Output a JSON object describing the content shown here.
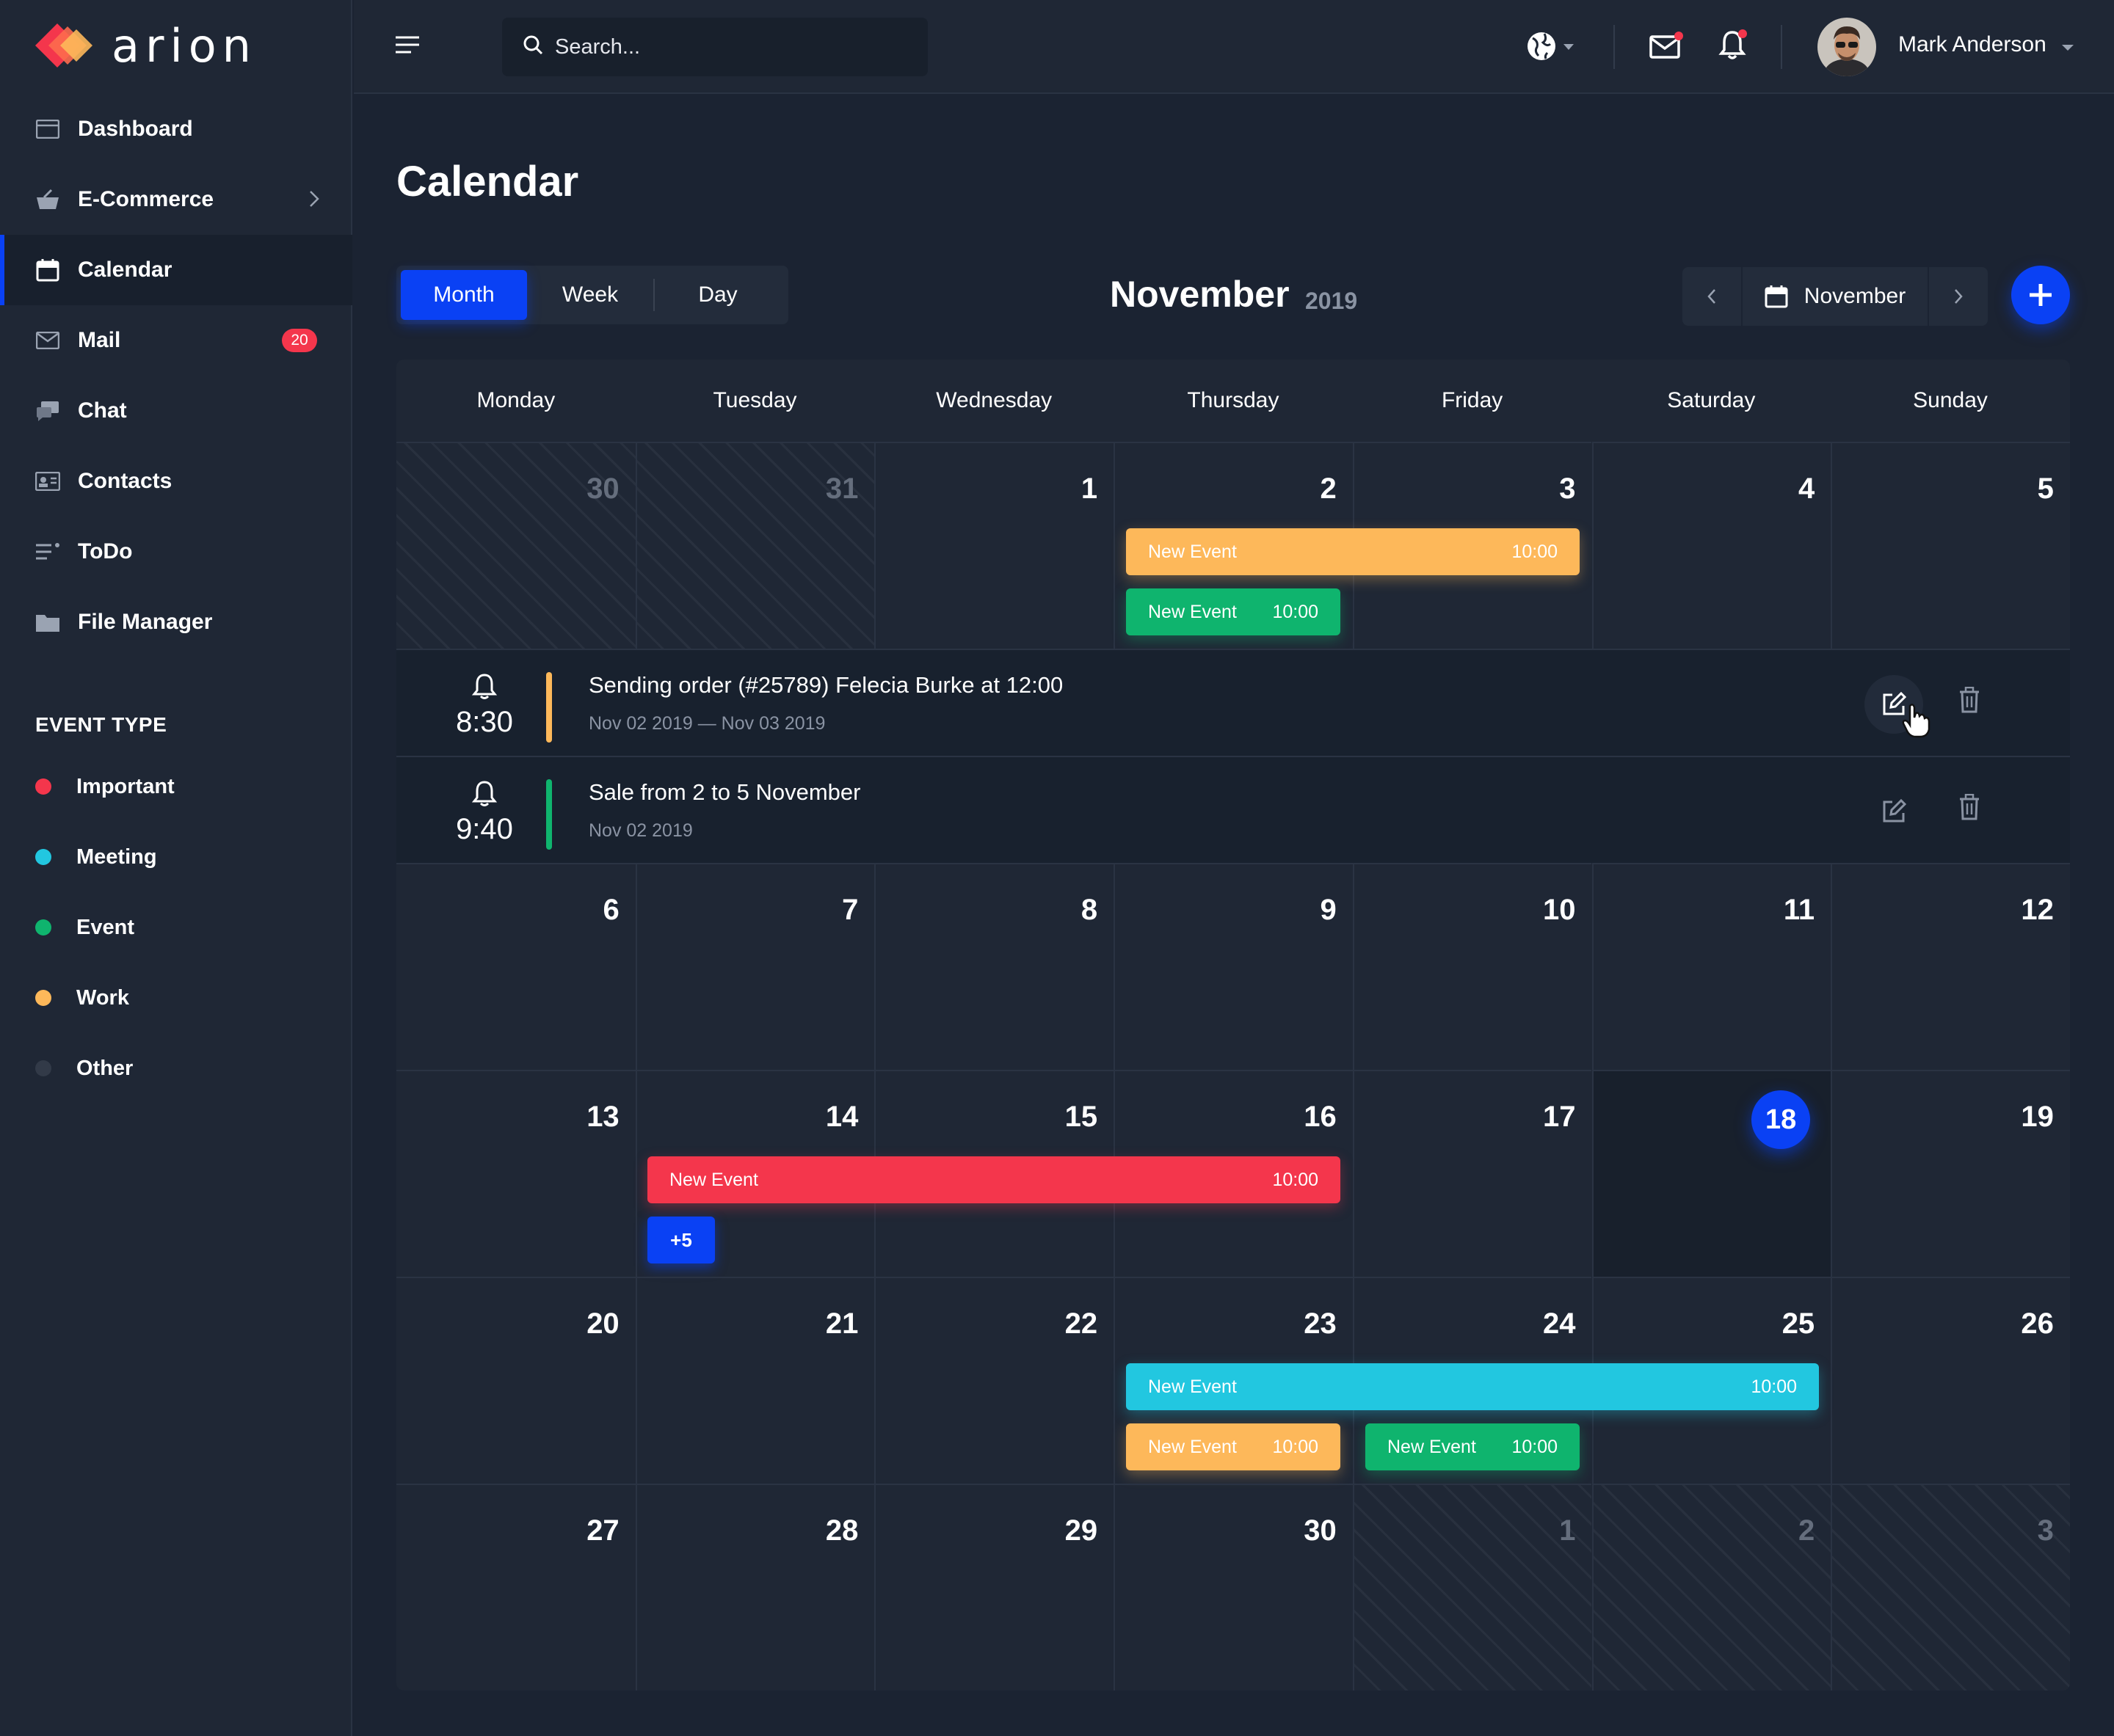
{
  "brand": {
    "name": "arion"
  },
  "sidebar": {
    "items": [
      {
        "label": "Dashboard",
        "icon": "dashboard-icon"
      },
      {
        "label": "E-Commerce",
        "icon": "basket-icon"
      },
      {
        "label": "Calendar",
        "icon": "calendar-icon",
        "active": true
      },
      {
        "label": "Mail",
        "icon": "mail-icon",
        "badge": "20"
      },
      {
        "label": "Chat",
        "icon": "chat-icon"
      },
      {
        "label": "Contacts",
        "icon": "contacts-icon"
      },
      {
        "label": "ToDo",
        "icon": "todo-icon"
      },
      {
        "label": "File Manager",
        "icon": "folder-icon"
      }
    ],
    "event_type_title": "EVENT TYPE",
    "event_types": [
      {
        "label": "Important",
        "color": "#f4364c"
      },
      {
        "label": "Meeting",
        "color": "#22c7e0"
      },
      {
        "label": "Event",
        "color": "#0fb46e"
      },
      {
        "label": "Work",
        "color": "#fdb85a"
      },
      {
        "label": "Other",
        "color": "#323a48"
      }
    ]
  },
  "topbar": {
    "search_placeholder": "Search...",
    "user_name": "Mark Anderson"
  },
  "page": {
    "title": "Calendar"
  },
  "view_switch": {
    "month": "Month",
    "week": "Week",
    "day": "Day",
    "selected": "Month"
  },
  "calendar": {
    "month": "November",
    "year": "2019",
    "nav_label": "November",
    "weekdays": [
      "Monday",
      "Tuesday",
      "Wednesday",
      "Thursday",
      "Friday",
      "Saturday",
      "Sunday"
    ],
    "weeks": [
      [
        "30",
        "31",
        "1",
        "2",
        "3",
        "4",
        "5"
      ],
      [
        "6",
        "7",
        "8",
        "9",
        "10",
        "11",
        "12"
      ],
      [
        "13",
        "14",
        "15",
        "16",
        "17",
        "18",
        "19"
      ],
      [
        "20",
        "21",
        "22",
        "23",
        "24",
        "25",
        "26"
      ],
      [
        "27",
        "28",
        "29",
        "30",
        "1",
        "2",
        "3"
      ]
    ],
    "today": "18",
    "events": {
      "w1_a": {
        "label": "New Event",
        "time": "10:00",
        "color": "#fdb85a"
      },
      "w1_b": {
        "label": "New Event",
        "time": "10:00",
        "color": "#0fb46e"
      },
      "w3_a": {
        "label": "New Event",
        "time": "10:00",
        "color": "#f4364c"
      },
      "w3_more": "+5",
      "w4_a": {
        "label": "New Event",
        "time": "10:00",
        "color": "#22c7e0"
      },
      "w4_b": {
        "label": "New Event",
        "time": "10:00",
        "color": "#fdb85a"
      },
      "w4_c": {
        "label": "New Event",
        "time": "10:00",
        "color": "#0fb46e"
      }
    },
    "expanded": [
      {
        "time": "8:30",
        "title": "Sending order (#25789) Felecia Burke at 12:00",
        "date": "Nov 02 2019 — Nov 03 2019",
        "color": "#fdb85a"
      },
      {
        "time": "9:40",
        "title": "Sale from 2 to 5 November",
        "date": "Nov 02 2019",
        "color": "#0fb46e"
      }
    ]
  },
  "colors": {
    "accent": "#0a41f4",
    "bg": "#1b2332",
    "panel": "#1f2735"
  }
}
